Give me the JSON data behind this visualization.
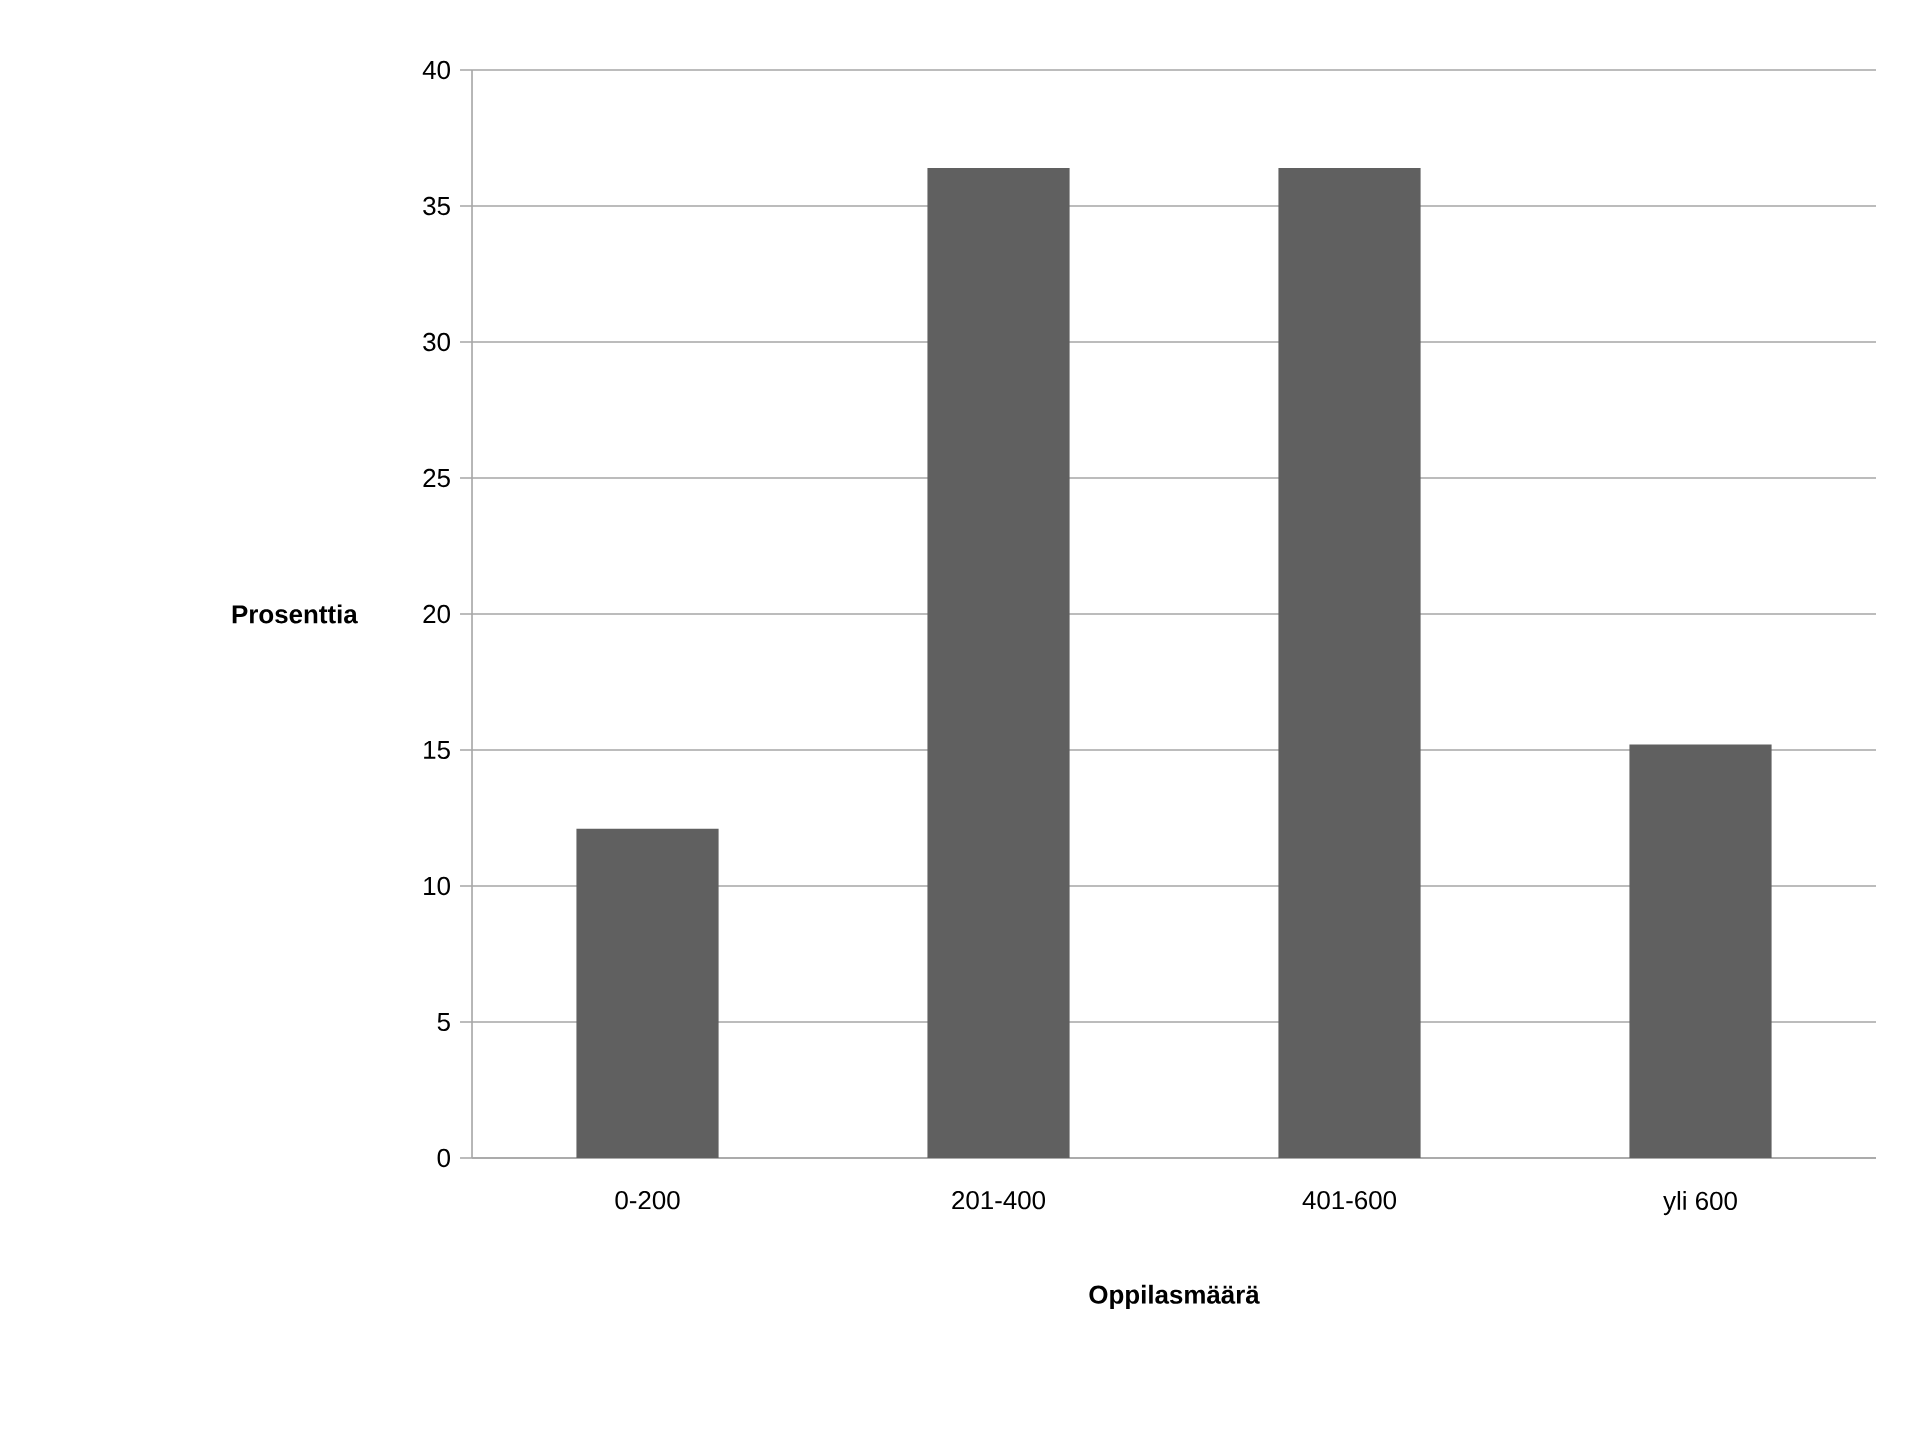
{
  "chart_data": {
    "type": "bar",
    "xlabel": "Oppilasmäärä",
    "ylabel": "Prosenttia",
    "categories": [
      "0-200",
      "201-400",
      "401-600",
      "yli 600"
    ],
    "values": [
      12.1,
      36.4,
      36.4,
      15.2
    ],
    "color": "#606060",
    "ylim": [
      0,
      40
    ],
    "yticks": [
      0,
      5,
      10,
      15,
      20,
      25,
      30,
      35,
      40
    ],
    "grid": "y"
  }
}
